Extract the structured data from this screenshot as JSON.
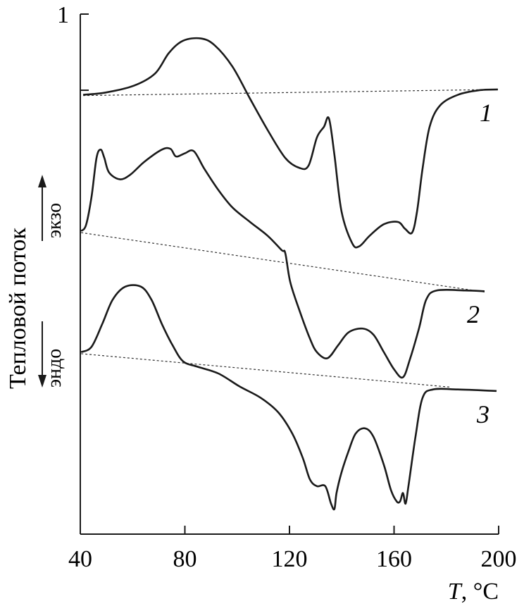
{
  "chart_data": {
    "type": "line",
    "title": "",
    "xlabel": "T, °C",
    "xlabel_var": "T",
    "xlabel_unit": ", °C",
    "ylabel": "Тепловой поток",
    "exo_label": "экзо",
    "endo_label": "эндо",
    "scale_bar_label": "1",
    "scale_bar_value": 1,
    "xlim": [
      40,
      200
    ],
    "ylim": [
      0,
      6.83
    ],
    "xticks": [
      40,
      80,
      120,
      160,
      200
    ],
    "xtick_labels": [
      "40",
      "80",
      "120",
      "160",
      "200"
    ],
    "grid": false,
    "colors": {
      "line": "#1a1a1a",
      "baseline": "#333333"
    },
    "series": [
      {
        "name": "1",
        "x": [
          41.1,
          49.7,
          60.5,
          68.6,
          73.9,
          79.3,
          86.1,
          91.4,
          98.2,
          104.9,
          111.6,
          118.4,
          123.8,
          127.3,
          130.5,
          133.2,
          135.1,
          137.2,
          139.9,
          144.0,
          146.7,
          150.7,
          156.1,
          161.5,
          164.2,
          166.9,
          168.8,
          170.9,
          173.6,
          177.6,
          184.4,
          192.5,
          199.7
        ],
        "y": [
          5.77,
          5.8,
          5.89,
          6.05,
          6.32,
          6.48,
          6.51,
          6.42,
          6.14,
          5.72,
          5.31,
          4.94,
          4.81,
          4.84,
          5.21,
          5.35,
          5.46,
          4.98,
          4.24,
          3.82,
          3.78,
          3.92,
          4.07,
          4.1,
          4.01,
          3.96,
          4.24,
          4.8,
          5.35,
          5.63,
          5.77,
          5.83,
          5.84
        ],
        "baseline": {
          "x": [
            41.1,
            199.7
          ],
          "y": [
            5.76,
            5.84
          ]
        }
      },
      {
        "name": "2",
        "x": [
          40.3,
          42.2,
          44.3,
          46.2,
          47.8,
          49.2,
          51.0,
          55.1,
          59.1,
          64.5,
          71.2,
          74.5,
          76.6,
          79.9,
          83.4,
          87.4,
          92.8,
          98.2,
          104.9,
          111.6,
          117.0,
          118.4,
          120.3,
          123.8,
          127.8,
          130.5,
          134.5,
          138.6,
          142.6,
          148.0,
          152.1,
          156.1,
          160.1,
          163.4,
          166.1,
          169.6,
          172.3,
          176.3,
          187.1,
          194.6
        ],
        "y": [
          3.98,
          4.06,
          4.43,
          4.94,
          5.05,
          4.94,
          4.75,
          4.66,
          4.72,
          4.89,
          5.05,
          5.06,
          4.96,
          5.0,
          5.03,
          4.8,
          4.52,
          4.29,
          4.1,
          3.92,
          3.73,
          3.69,
          3.31,
          2.94,
          2.57,
          2.39,
          2.31,
          2.48,
          2.65,
          2.7,
          2.62,
          2.39,
          2.16,
          2.06,
          2.3,
          2.71,
          3.08,
          3.2,
          3.2,
          3.19
        ],
        "baseline": {
          "x": [
            40.3,
            194.6
          ],
          "y": [
            3.96,
            3.18
          ]
        }
      },
      {
        "name": "3",
        "x": [
          40.3,
          44.3,
          48.4,
          52.4,
          57.2,
          63.2,
          67.2,
          71.2,
          75.3,
          79.3,
          84.7,
          92.8,
          100.9,
          109.0,
          115.7,
          121.1,
          125.1,
          127.8,
          130.5,
          133.7,
          135.9,
          137.2,
          138.0,
          139.9,
          142.6,
          145.3,
          148.8,
          152.1,
          156.1,
          158.8,
          161.0,
          162.3,
          163.4,
          164.4,
          165.5,
          168.2,
          170.9,
          174.9,
          184.4,
          199.2
        ],
        "y": [
          2.39,
          2.46,
          2.76,
          3.08,
          3.25,
          3.25,
          3.08,
          2.76,
          2.48,
          2.27,
          2.2,
          2.11,
          1.94,
          1.79,
          1.6,
          1.32,
          1.0,
          0.72,
          0.63,
          0.63,
          0.4,
          0.33,
          0.54,
          0.81,
          1.09,
          1.32,
          1.39,
          1.28,
          0.91,
          0.58,
          0.43,
          0.43,
          0.54,
          0.4,
          0.63,
          1.28,
          1.79,
          1.9,
          1.9,
          1.88
        ],
        "baseline": {
          "x": [
            40.3,
            181.7
          ],
          "y": [
            2.37,
            1.93
          ]
        }
      }
    ]
  }
}
